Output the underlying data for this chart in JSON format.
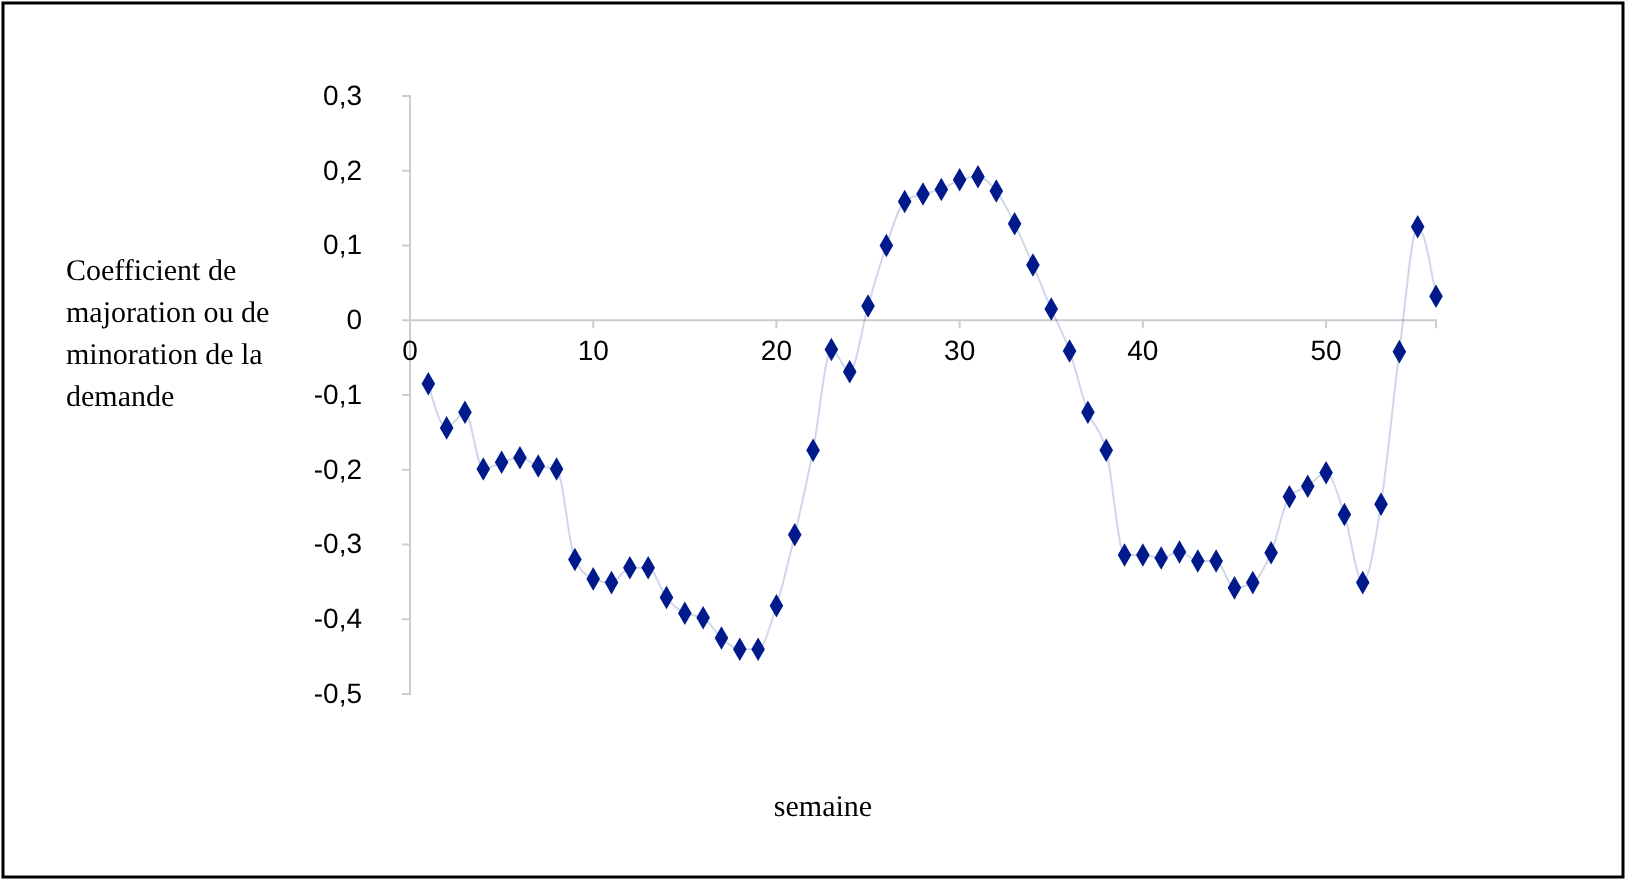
{
  "chart_data": {
    "type": "line",
    "xlabel": "semaine",
    "ylabel": "Coefficient de majoration ou de minoration de la demande",
    "x": [
      1,
      2,
      3,
      4,
      5,
      6,
      7,
      8,
      9,
      10,
      11,
      12,
      13,
      14,
      15,
      16,
      17,
      18,
      19,
      20,
      21,
      22,
      23,
      24,
      25,
      26,
      27,
      28,
      29,
      30,
      31,
      32,
      33,
      34,
      35,
      36,
      37,
      38,
      39,
      40,
      41,
      42,
      43,
      44,
      45,
      46,
      47,
      48,
      49,
      50,
      51,
      52,
      53,
      54,
      55,
      56
    ],
    "series": [
      {
        "color": "#001a8c",
        "values": [
          -0.085,
          -0.144,
          -0.123,
          -0.199,
          -0.19,
          -0.184,
          -0.195,
          -0.199,
          -0.32,
          -0.346,
          -0.351,
          -0.331,
          -0.331,
          -0.371,
          -0.392,
          -0.398,
          -0.425,
          -0.44,
          -0.44,
          -0.382,
          -0.287,
          -0.174,
          -0.039,
          -0.069,
          0.019,
          0.1,
          0.159,
          0.169,
          0.175,
          0.188,
          0.192,
          0.173,
          0.129,
          0.074,
          0.015,
          -0.041,
          -0.123,
          -0.174,
          -0.314,
          -0.314,
          -0.318,
          -0.31,
          -0.322,
          -0.322,
          -0.358,
          -0.351,
          -0.311,
          -0.236,
          -0.222,
          -0.204,
          -0.26,
          -0.351,
          -0.246,
          -0.042,
          0.125,
          0.032
        ]
      }
    ],
    "xlim": [
      0,
      56
    ],
    "xticks": [
      0,
      10,
      20,
      30,
      40,
      50
    ],
    "ylim": [
      -0.5,
      0.3
    ],
    "yticks": [
      {
        "value": -0.5,
        "label": "-0,5"
      },
      {
        "value": -0.4,
        "label": "-0,4"
      },
      {
        "value": -0.3,
        "label": "-0,3"
      },
      {
        "value": -0.2,
        "label": "-0,2"
      },
      {
        "value": -0.1,
        "label": "-0,1"
      },
      {
        "value": 0,
        "label": "0"
      },
      {
        "value": 0.1,
        "label": "0,1"
      },
      {
        "value": 0.2,
        "label": "0,2"
      },
      {
        "value": 0.3,
        "label": "0,3"
      }
    ],
    "marker": "diamond"
  }
}
